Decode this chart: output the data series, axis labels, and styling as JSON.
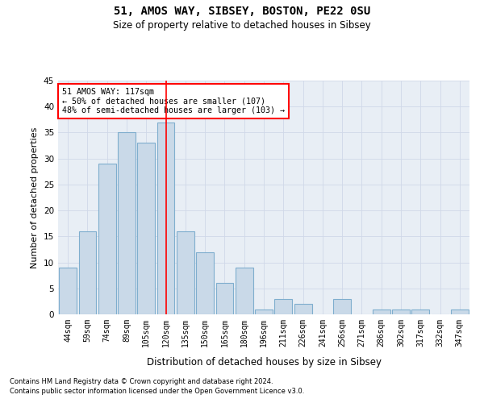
{
  "title1": "51, AMOS WAY, SIBSEY, BOSTON, PE22 0SU",
  "title2": "Size of property relative to detached houses in Sibsey",
  "xlabel": "Distribution of detached houses by size in Sibsey",
  "ylabel": "Number of detached properties",
  "categories": [
    "44sqm",
    "59sqm",
    "74sqm",
    "89sqm",
    "105sqm",
    "120sqm",
    "135sqm",
    "150sqm",
    "165sqm",
    "180sqm",
    "196sqm",
    "211sqm",
    "226sqm",
    "241sqm",
    "256sqm",
    "271sqm",
    "286sqm",
    "302sqm",
    "317sqm",
    "332sqm",
    "347sqm"
  ],
  "values": [
    9,
    16,
    29,
    35,
    33,
    37,
    16,
    12,
    6,
    9,
    1,
    3,
    2,
    0,
    3,
    0,
    1,
    1,
    1,
    0,
    1
  ],
  "bar_color": "#c9d9e8",
  "bar_edge_color": "#7faece",
  "bar_linewidth": 0.8,
  "ylim": [
    0,
    45
  ],
  "yticks": [
    0,
    5,
    10,
    15,
    20,
    25,
    30,
    35,
    40,
    45
  ],
  "annotation_label": "51 AMOS WAY: 117sqm",
  "annotation_line1": "← 50% of detached houses are smaller (107)",
  "annotation_line2": "48% of semi-detached houses are larger (103) →",
  "annotation_box_color": "white",
  "annotation_box_edge": "red",
  "vline_color": "red",
  "vline_x_index": 5,
  "grid_color": "#d0d8e8",
  "background_color": "#e8eef5",
  "footer1": "Contains HM Land Registry data © Crown copyright and database right 2024.",
  "footer2": "Contains public sector information licensed under the Open Government Licence v3.0."
}
